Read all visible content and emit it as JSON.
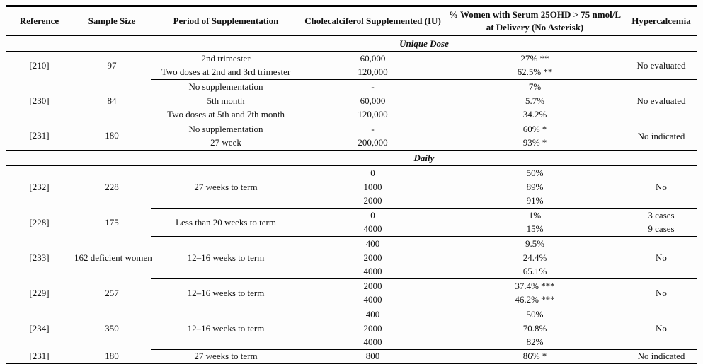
{
  "colors": {
    "background": "#fdfdfd",
    "text": "#111111",
    "rule": "#000000"
  },
  "table": {
    "header": {
      "reference": "Reference",
      "sample_size": "Sample Size",
      "period": "Period of Supplementation",
      "dose": "Cholecalciferol Supplemented (IU)",
      "percent_line1": "% Women with Serum 25OHD > 75 nmol/L",
      "percent_line2": "at Delivery (No Asterisk)",
      "hypercalcemia": "Hypercalcemia"
    },
    "sections": [
      {
        "title": "Unique Dose",
        "groups": [
          {
            "reference": "[210]",
            "sample_size": "97",
            "hypercalcemia": "No evaluated",
            "rows": [
              {
                "period": "2nd trimester",
                "dose": "60,000",
                "percent": "27% **"
              },
              {
                "period": "Two doses at 2nd and 3rd trimester",
                "dose": "120,000",
                "percent": "62.5% **"
              }
            ]
          },
          {
            "reference": "[230]",
            "sample_size": "84",
            "hypercalcemia": "No evaluated",
            "rows": [
              {
                "period": "No supplementation",
                "dose": "-",
                "percent": "7%"
              },
              {
                "period": "5th month",
                "dose": "60,000",
                "percent": "5.7%"
              },
              {
                "period": "Two doses at 5th and 7th month",
                "dose": "120,000",
                "percent": "34.2%"
              }
            ]
          },
          {
            "reference": "[231]",
            "sample_size": "180",
            "hypercalcemia": "No indicated",
            "rows": [
              {
                "period": "No supplementation",
                "dose": "-",
                "percent": "60% *"
              },
              {
                "period": "27 week",
                "dose": "200,000",
                "percent": "93% *"
              }
            ]
          }
        ]
      },
      {
        "title": "Daily",
        "groups": [
          {
            "reference": "[232]",
            "sample_size": "228",
            "period": "27 weeks to term",
            "hypercalcemia": "No",
            "rows": [
              {
                "dose": "0",
                "percent": "50%"
              },
              {
                "dose": "1000",
                "percent": "89%"
              },
              {
                "dose": "2000",
                "percent": "91%"
              }
            ]
          },
          {
            "reference": "[228]",
            "sample_size": "175",
            "period": "Less than 20 weeks to term",
            "rows": [
              {
                "dose": "0",
                "percent": "1%",
                "hypercalcemia": "3 cases"
              },
              {
                "dose": "4000",
                "percent": "15%",
                "hypercalcemia": "9 cases"
              }
            ]
          },
          {
            "reference": "[233]",
            "sample_size": "162 deficient women",
            "period": "12–16 weeks to term",
            "hypercalcemia": "No",
            "rows": [
              {
                "dose": "400",
                "percent": "9.5%"
              },
              {
                "dose": "2000",
                "percent": "24.4%"
              },
              {
                "dose": "4000",
                "percent": "65.1%"
              }
            ]
          },
          {
            "reference": "[229]",
            "sample_size": "257",
            "period": "12–16 weeks to term",
            "hypercalcemia": "No",
            "rows": [
              {
                "dose": "2000",
                "percent": "37.4% ***"
              },
              {
                "dose": "4000",
                "percent": "46.2% ***"
              }
            ]
          },
          {
            "reference": "[234]",
            "sample_size": "350",
            "period": "12–16 weeks to term",
            "hypercalcemia": "No",
            "rows": [
              {
                "dose": "400",
                "percent": "50%"
              },
              {
                "dose": "2000",
                "percent": "70.8%"
              },
              {
                "dose": "4000",
                "percent": "82%"
              }
            ]
          },
          {
            "reference": "[231]",
            "sample_size": "180",
            "period": "27 weeks to term",
            "hypercalcemia": "No indicated",
            "rows": [
              {
                "dose": "800",
                "percent": "86% *"
              }
            ]
          }
        ]
      }
    ]
  }
}
